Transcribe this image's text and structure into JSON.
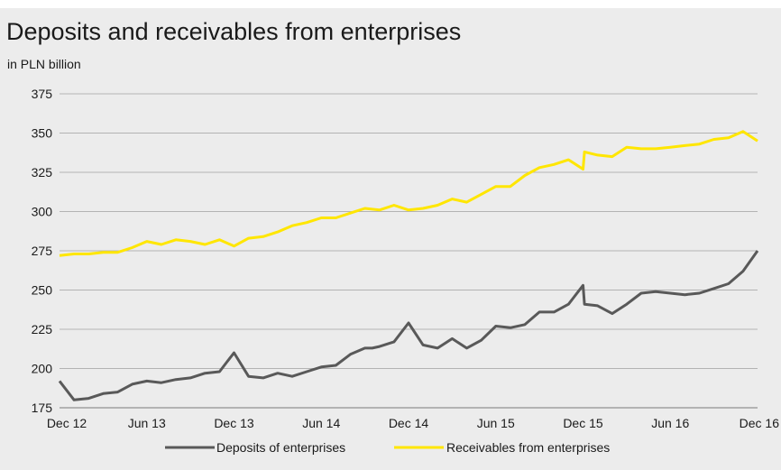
{
  "chart_data": {
    "type": "line",
    "title": "Deposits and receivables from enterprises",
    "subtitle": "in PLN billion",
    "xlabel": "",
    "ylabel": "",
    "ylim": [
      175,
      375
    ],
    "yticks": [
      175,
      200,
      225,
      250,
      275,
      300,
      325,
      350,
      375
    ],
    "x_tick_labels": [
      "Dec 12",
      "Jun 13",
      "Dec 13",
      "Jun 14",
      "Dec 14",
      "Jun 15",
      "Dec 15",
      "Jun 16",
      "Dec 16"
    ],
    "grid": true,
    "legend_position": "bottom-center",
    "series": [
      {
        "name": "Deposits of enterprises",
        "color": "#595959",
        "x": [
          0,
          0.5,
          1,
          2,
          3,
          4,
          5,
          6,
          7,
          8,
          9,
          10,
          11,
          11.5,
          12,
          13,
          14,
          15,
          16,
          17,
          18,
          19,
          20,
          21,
          21.5,
          22,
          23,
          24,
          25,
          26,
          27,
          28,
          29,
          30,
          31,
          32,
          33,
          34,
          35,
          36,
          36.1,
          37,
          38,
          39,
          40,
          41,
          42,
          43,
          44,
          45,
          46,
          47,
          48
        ],
        "values": [
          192,
          186,
          180,
          181,
          184,
          185,
          190,
          192,
          191,
          193,
          194,
          197,
          198,
          204,
          210,
          195,
          194,
          197,
          195,
          198,
          201,
          202,
          209,
          213,
          213,
          214,
          217,
          229,
          215,
          213,
          219,
          213,
          218,
          227,
          226,
          228,
          236,
          236,
          241,
          253,
          241,
          240,
          235,
          241,
          248,
          249,
          248,
          247,
          248,
          251,
          254,
          262,
          275
        ]
      },
      {
        "name": "Receivables from enterprises",
        "color": "#ffe600",
        "x": [
          0,
          1,
          2,
          3,
          4,
          5,
          6,
          7,
          8,
          9,
          10,
          11,
          12,
          13,
          14,
          15,
          16,
          17,
          18,
          19,
          20,
          21,
          22,
          23,
          24,
          25,
          26,
          27,
          28,
          29,
          30,
          31,
          32,
          33,
          34,
          35,
          36,
          36.1,
          37,
          38,
          39,
          40,
          41,
          42,
          43,
          44,
          45,
          46,
          47,
          48
        ],
        "values": [
          272,
          273,
          273,
          274,
          274,
          277,
          281,
          279,
          282,
          281,
          279,
          282,
          278,
          283,
          284,
          287,
          291,
          293,
          296,
          296,
          299,
          302,
          301,
          304,
          301,
          302,
          304,
          308,
          306,
          311,
          316,
          316,
          323,
          328,
          330,
          333,
          327,
          338,
          336,
          335,
          341,
          340,
          340,
          341,
          342,
          343,
          346,
          347,
          351,
          345
        ]
      }
    ]
  }
}
